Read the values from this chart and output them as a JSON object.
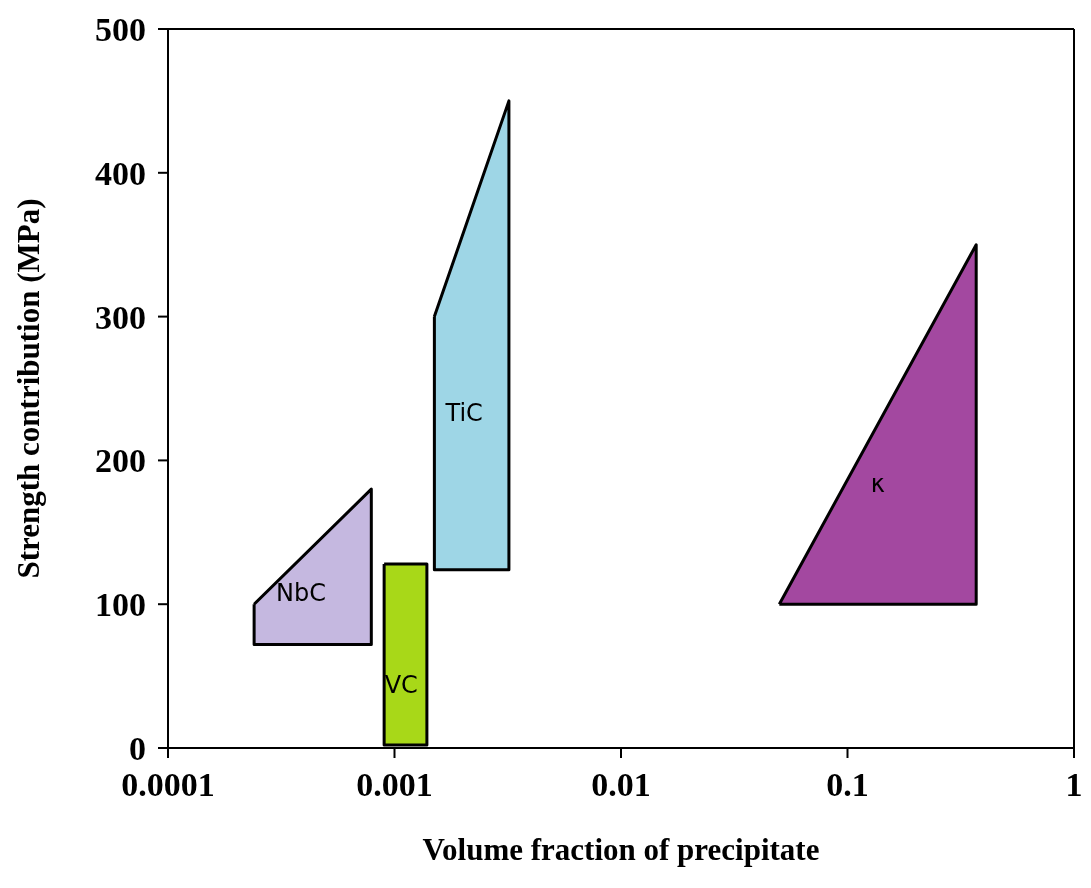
{
  "chart_data": {
    "type": "area",
    "xlabel": "Volume fraction of precipitate",
    "ylabel": "Strength contribution (MPa)",
    "log": "x",
    "xlim": [
      0.0001,
      1
    ],
    "xticks": [
      0.0001,
      0.001,
      0.01,
      0.1,
      1
    ],
    "ylim": [
      0,
      500
    ],
    "yticks": [
      0,
      100,
      200,
      300,
      400,
      500
    ],
    "series": [
      {
        "name": "NbC",
        "color": "#c5b8e0",
        "x": [
          0.00024,
          0.00079,
          0.00079,
          0.00024,
          0.00024
        ],
        "values": [
          100,
          180,
          72,
          72,
          100
        ]
      },
      {
        "name": "VC",
        "color": "#a8d818",
        "x": [
          0.0009,
          0.00139,
          0.00139,
          0.0009,
          0.0009
        ],
        "values": [
          128,
          128,
          2,
          2,
          128
        ]
      },
      {
        "name": "TiC",
        "color": "#9ed6e6",
        "x": [
          0.0015,
          0.0032,
          0.0032,
          0.0015,
          0.0015
        ],
        "values": [
          300,
          450,
          124,
          124,
          300
        ]
      },
      {
        "name": "κ",
        "color": "#a348a0",
        "x": [
          0.05,
          0.37,
          0.37,
          0.05
        ],
        "values": [
          100,
          350,
          100,
          100
        ]
      }
    ]
  }
}
